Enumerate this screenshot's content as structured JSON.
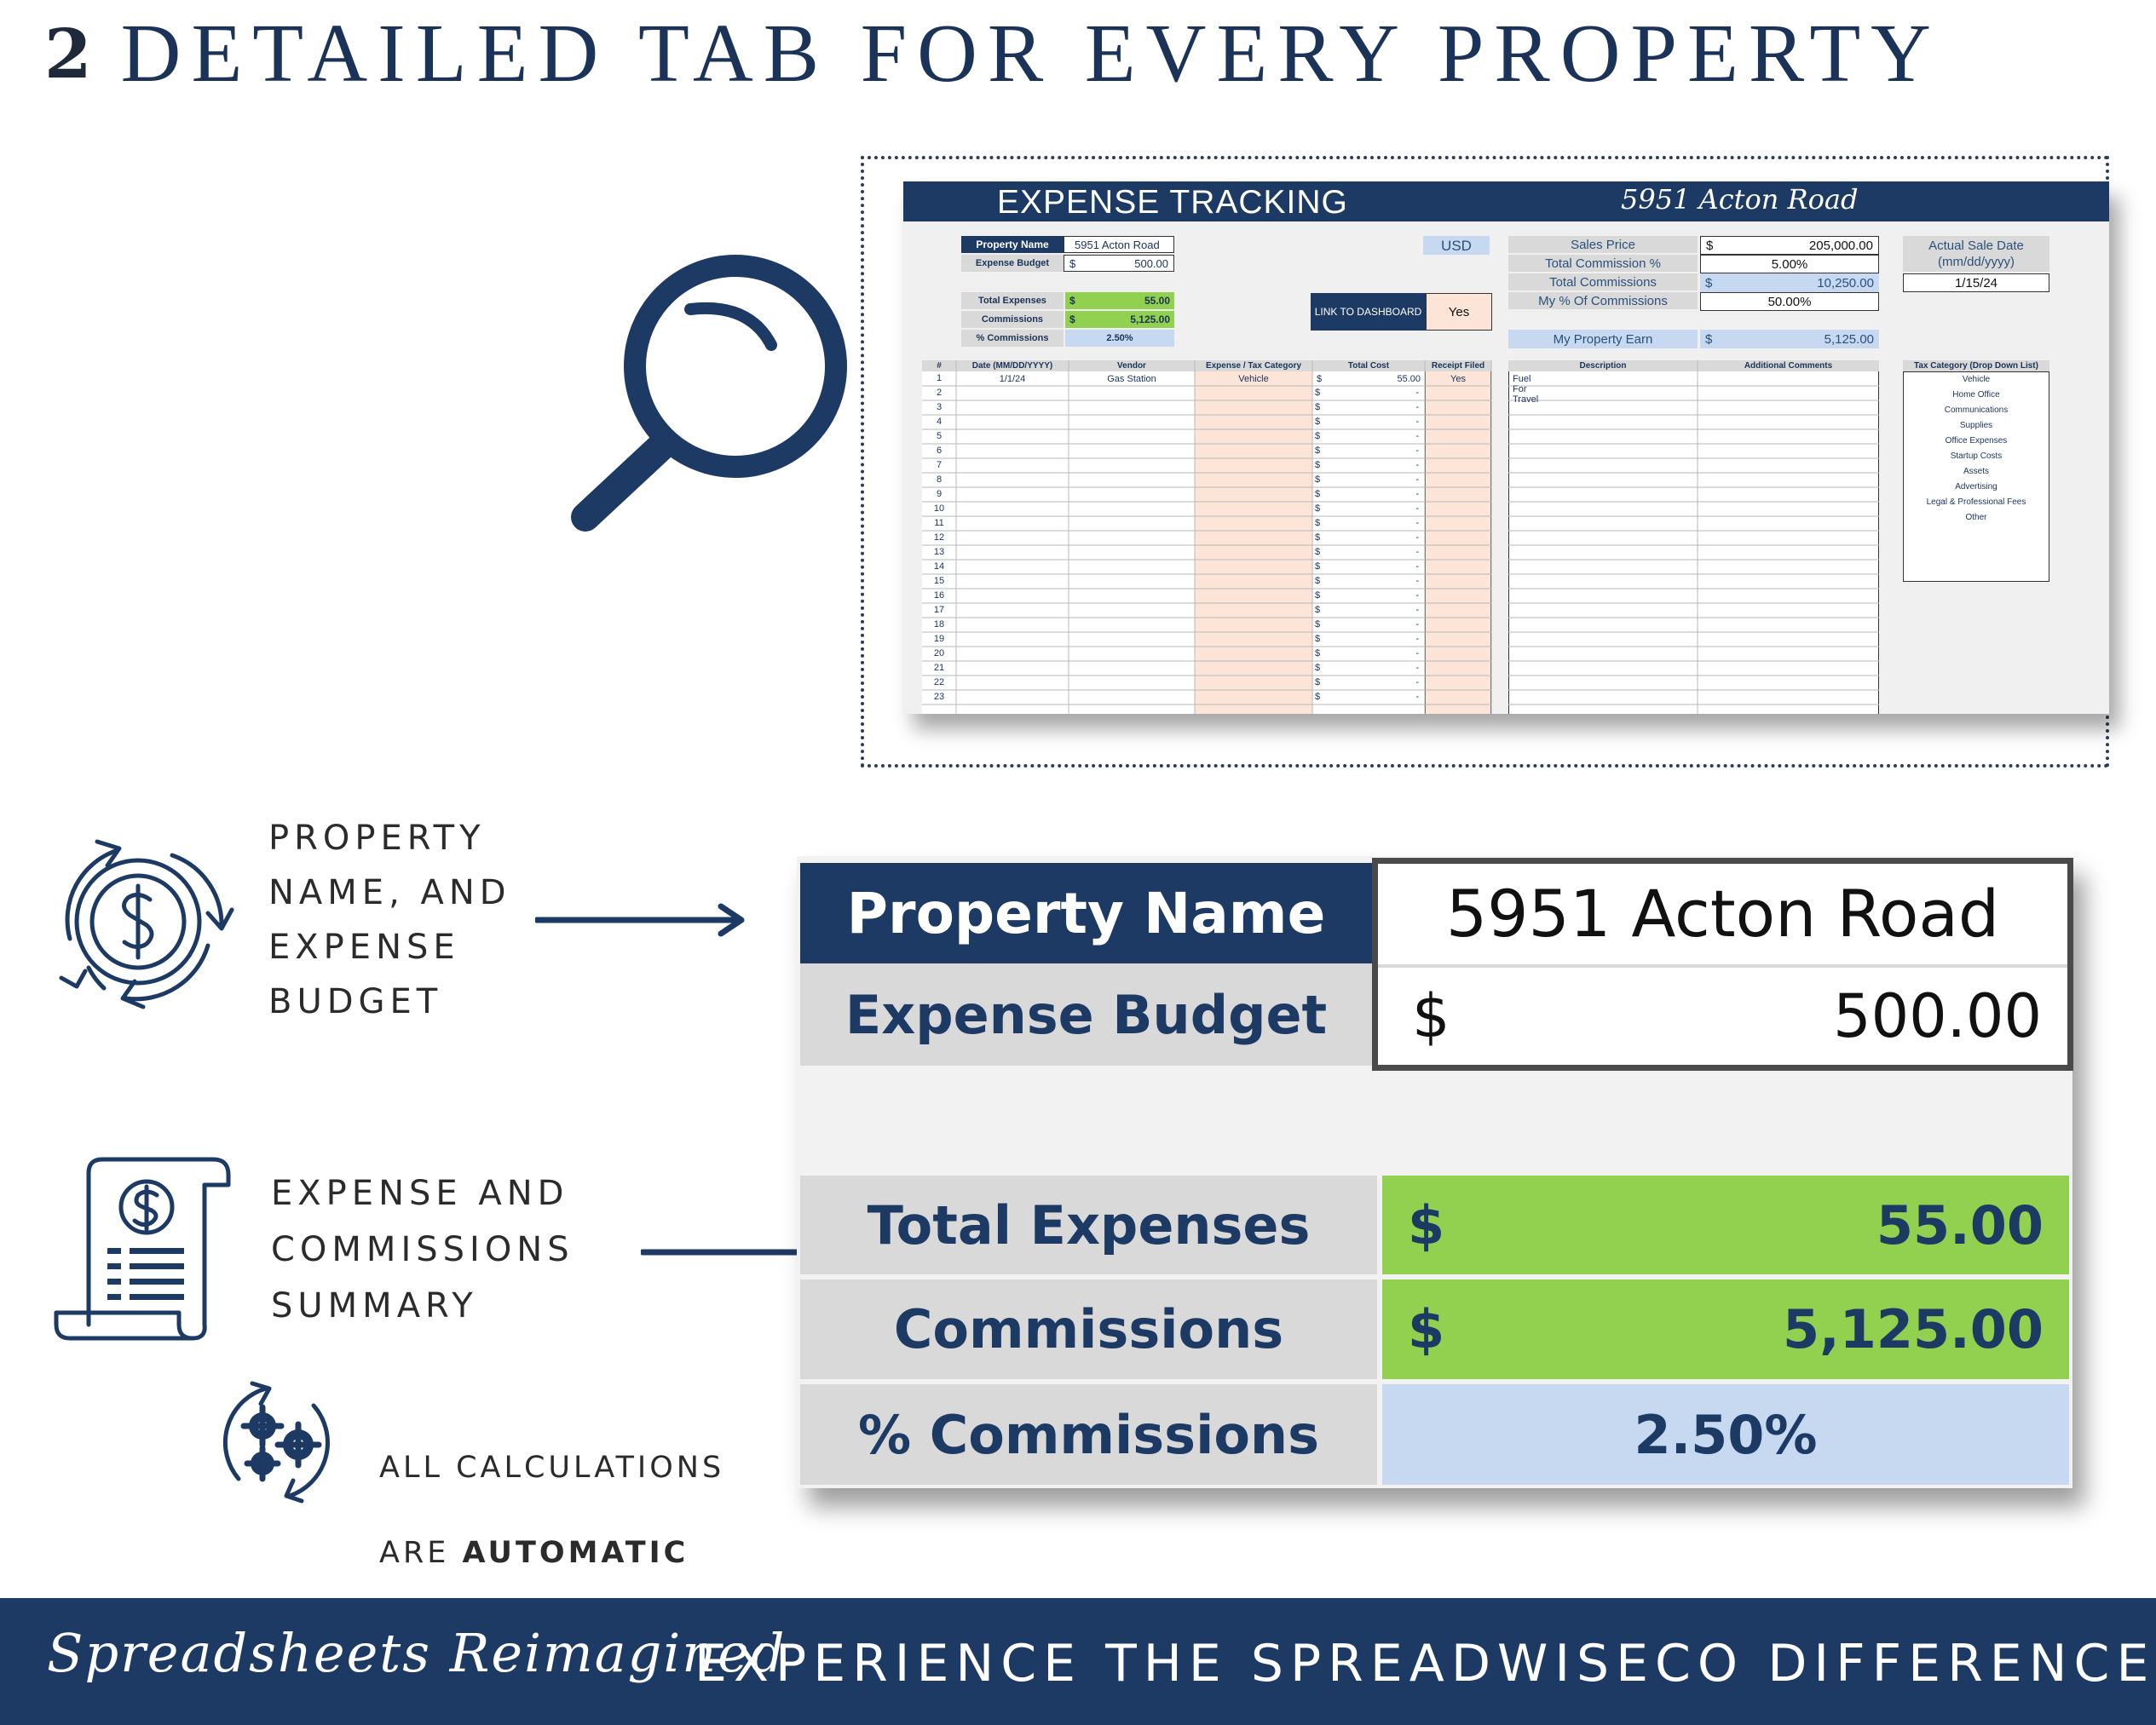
{
  "heading": {
    "number": "2",
    "title": "DETAILED TAB FOR EVERY PROPERTY"
  },
  "sheet": {
    "banner_title": "EXPENSE TRACKING",
    "banner_property": "5951 Acton Road",
    "property_name_label": "Property Name",
    "property_name_value": "5951 Acton Road",
    "expense_budget_label": "Expense Budget",
    "expense_budget_currency": "$",
    "expense_budget_value": "500.00",
    "currency_code": "USD",
    "total_expenses_label": "Total Expenses",
    "total_expenses_currency": "$",
    "total_expenses_value": "55.00",
    "commissions_label": "Commissions",
    "commissions_currency": "$",
    "commissions_value": "5,125.00",
    "pct_commissions_label": "% Commissions",
    "pct_commissions_value": "2.50%",
    "link_dashboard_label": "LINK TO DASHBOARD",
    "link_dashboard_value": "Yes",
    "sales_price_label": "Sales Price",
    "sales_price_currency": "$",
    "sales_price_value": "205,000.00",
    "total_commission_pct_label": "Total Commission %",
    "total_commission_pct_value": "5.00%",
    "total_commissions_label": "Total Commissions",
    "total_commissions_currency": "$",
    "total_commissions_value": "10,250.00",
    "my_pct_label": "My % Of Commissions",
    "my_pct_value": "50.00%",
    "my_earn_label": "My Property Earn",
    "my_earn_currency": "$",
    "my_earn_value": "5,125.00",
    "sale_date_label_1": "Actual Sale Date",
    "sale_date_label_2": "(mm/dd/yyyy)",
    "sale_date_value": "1/15/24",
    "columns": {
      "num": "#",
      "date": "Date (MM/DD/YYYY)",
      "vendor": "Vendor",
      "category": "Expense / Tax Category",
      "cost": "Total Cost",
      "receipt": "Receipt Filed",
      "description": "Description",
      "comments": "Additional Comments"
    },
    "first_row": {
      "date": "1/1/24",
      "vendor": "Gas Station",
      "category": "Vehicle",
      "currency": "$",
      "cost": "55.00",
      "receipt": "Yes",
      "description": "Fuel For Travel"
    },
    "row_numbers": [
      "1",
      "2",
      "3",
      "4",
      "5",
      "6",
      "7",
      "8",
      "9",
      "10",
      "11",
      "12",
      "13",
      "14",
      "15",
      "16",
      "17",
      "18",
      "19",
      "20",
      "21",
      "22",
      "23"
    ],
    "empty_dollar": "$",
    "empty_dash": "-",
    "tax_list_header": "Tax Category (Drop Down List)",
    "tax_categories": [
      "Vehicle",
      "Home Office",
      "Communications",
      "Supplies",
      "Office Expenses",
      "Startup Costs",
      "Assets",
      "Advertising",
      "Legal & Professional Fees",
      "Other"
    ]
  },
  "features": {
    "property": "PROPERTY\nNAME, AND\nEXPENSE\nBUDGET",
    "summary": "EXPENSE AND\nCOMMISSIONS\nSUMMARY",
    "auto_line1": "ALL CALCULATIONS",
    "auto_line2_prefix": "ARE ",
    "auto_line2_bold": "AUTOMATIC"
  },
  "zoom": {
    "property_name_label": "Property Name",
    "property_name_value": "5951 Acton Road",
    "expense_budget_label": "Expense Budget",
    "expense_budget_currency": "$",
    "expense_budget_value": "500.00",
    "total_expenses_label": "Total Expenses",
    "total_expenses_currency": "$",
    "total_expenses_value": "55.00",
    "commissions_label": "Commissions",
    "commissions_currency": "$",
    "commissions_value": "5,125.00",
    "pct_commissions_label": "% Commissions",
    "pct_commissions_value": "2.50%"
  },
  "footer": {
    "signature": "Spreadsheets Reimagined",
    "tagline": "EXPERIENCE THE SPREADWISECO DIFFERENCE"
  },
  "colors": {
    "navy": "#1c3a64",
    "green": "#92d050",
    "light_blue": "#c6d9f0",
    "peach": "#fce4d6",
    "grey": "#d9d9d9"
  }
}
